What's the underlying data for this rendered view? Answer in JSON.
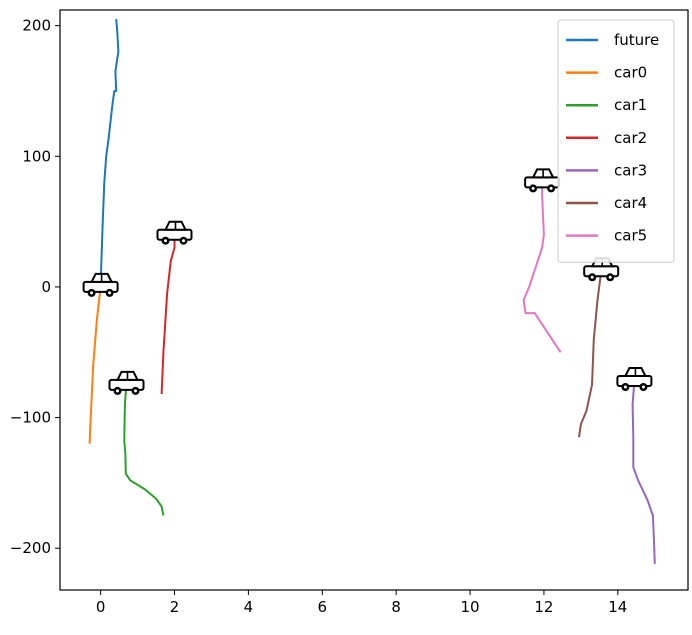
{
  "chart_data": {
    "type": "line",
    "title": "",
    "xlabel": "",
    "ylabel": "",
    "xlim": [
      -1.1,
      15.9
    ],
    "ylim": [
      -232,
      212
    ],
    "xticks": [
      0,
      2,
      4,
      6,
      8,
      10,
      12,
      14
    ],
    "yticks": [
      -200,
      -100,
      0,
      100,
      200
    ],
    "grid": false,
    "legend_position": "top-right",
    "series": [
      {
        "name": "future",
        "color": "#1f77b4",
        "x": [
          0.0,
          0.02,
          0.05,
          0.1,
          0.15,
          0.22,
          0.28,
          0.32,
          0.37,
          0.42,
          0.4,
          0.45,
          0.48,
          0.45,
          0.42
        ],
        "y": [
          0,
          20,
          45,
          80,
          100,
          115,
          130,
          140,
          150,
          150,
          165,
          175,
          180,
          195,
          205
        ],
        "car_at_end": false
      },
      {
        "name": "car0",
        "color": "#ff7f0e",
        "x": [
          -0.3,
          -0.27,
          -0.2,
          -0.1,
          0.0
        ],
        "y": [
          -120,
          -100,
          -60,
          -25,
          0
        ],
        "car_at_end": true
      },
      {
        "name": "car1",
        "color": "#2ca02c",
        "x": [
          1.7,
          1.65,
          1.5,
          1.2,
          0.8,
          0.68,
          0.67,
          0.64,
          0.65,
          0.66,
          0.7
        ],
        "y": [
          -175,
          -168,
          -162,
          -155,
          -148,
          -143,
          -128,
          -118,
          -100,
          -88,
          -75
        ],
        "car_at_end": true
      },
      {
        "name": "car2",
        "color": "#d62728",
        "x": [
          1.65,
          1.7,
          1.8,
          1.9,
          2.0,
          2.0
        ],
        "y": [
          -82,
          -50,
          -5,
          20,
          30,
          40
        ],
        "car_at_end": true
      },
      {
        "name": "car3",
        "color": "#9467bd",
        "x": [
          15.0,
          14.98,
          14.95,
          14.8,
          14.55,
          14.42,
          14.42,
          14.4,
          14.45
        ],
        "y": [
          -212,
          -195,
          -175,
          -163,
          -148,
          -138,
          -115,
          -90,
          -72
        ],
        "car_at_end": true
      },
      {
        "name": "car4",
        "color": "#8c564b",
        "x": [
          12.95,
          13.0,
          13.15,
          13.3,
          13.35,
          13.45,
          13.55
        ],
        "y": [
          -115,
          -105,
          -95,
          -75,
          -40,
          -10,
          12
        ],
        "car_at_end": true
      },
      {
        "name": "car5",
        "color": "#e377c2",
        "x": [
          12.45,
          12.1,
          11.75,
          11.5,
          11.45,
          11.6,
          11.95,
          12.0,
          11.95,
          11.95
        ],
        "y": [
          -50,
          -35,
          -20,
          -20,
          -10,
          0,
          30,
          40,
          70,
          80
        ],
        "car_at_end": true
      }
    ]
  }
}
